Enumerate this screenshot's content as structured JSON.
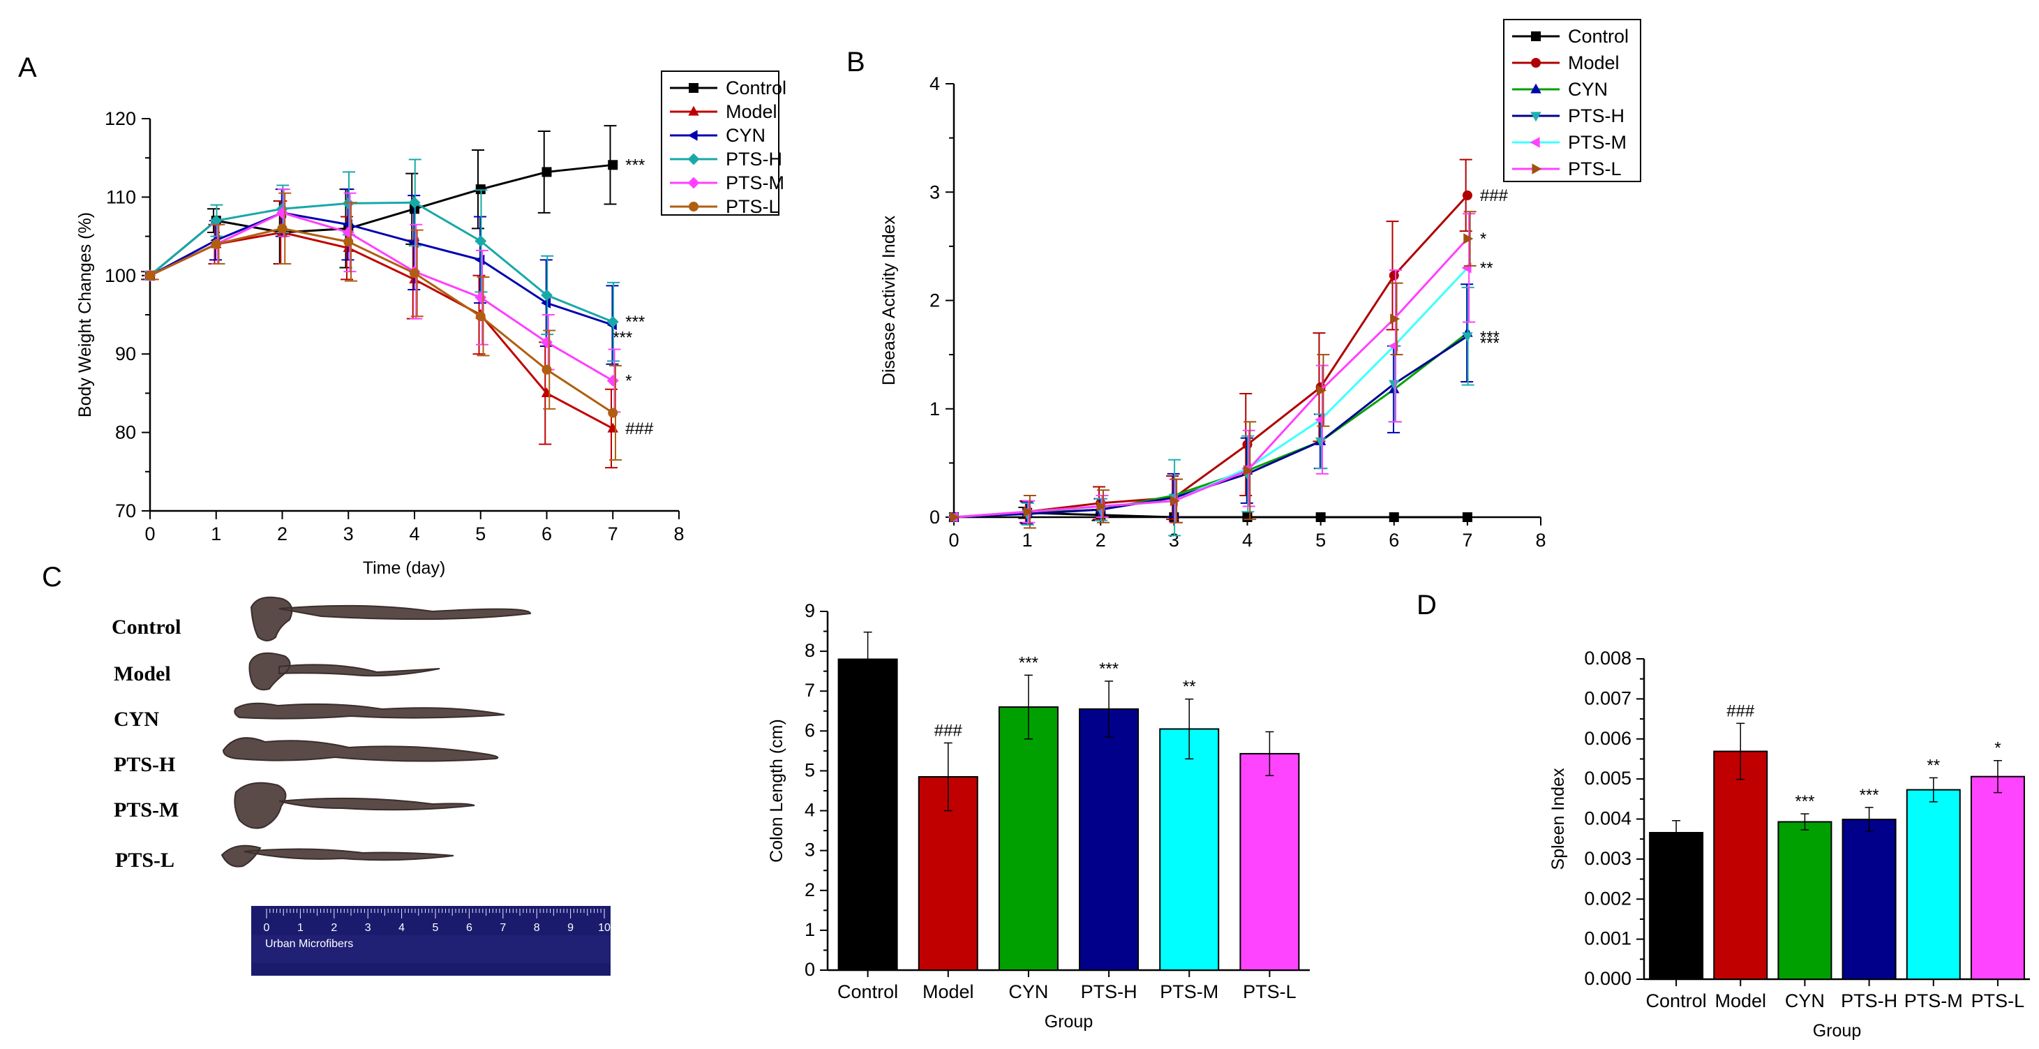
{
  "panels": {
    "A": "A",
    "B": "B",
    "C": "C",
    "D": "D"
  },
  "colon_photo": {
    "labels": [
      "Control",
      "Model",
      "CYN",
      "PTS-H",
      "PTS-M",
      "PTS-L"
    ],
    "ruler_numbers": [
      "0",
      "1",
      "2",
      "3",
      "4",
      "5",
      "6",
      "7",
      "8",
      "9",
      "10"
    ],
    "ruler_brand": "Urban Microfibers"
  },
  "colors": {
    "Control": "#000000",
    "Model": "#c00000",
    "CYN": "#00a000",
    "PTS-H": "#00008b",
    "PTS-M": "#00ffff",
    "PTS-L": "#ff44ff",
    "PTS-H_line": "#18a8a8",
    "PTS-M_line": "#ff40ff",
    "PTS-L_line": "#b05e10",
    "CYN_line": "#0000b0",
    "Model_line": "#c00000",
    "B_Model": "#b00000",
    "B_CYN": "#00a000",
    "B_PTS-H": "#000090",
    "B_PTS-M": "#40ffff",
    "B_PTS-L": "#a05010",
    "B_PTS-L_alt": "#ff40ff"
  },
  "chart_data": [
    {
      "id": "A",
      "type": "line",
      "title": "",
      "xlabel": "Time (day)",
      "ylabel": "Body Weight Changes (%)",
      "xlim": [
        0,
        8
      ],
      "ylim": [
        70,
        120
      ],
      "xticks": [
        "0",
        "1",
        "2",
        "3",
        "4",
        "5",
        "6",
        "7",
        "8"
      ],
      "yticks": [
        "70",
        "80",
        "90",
        "100",
        "110",
        "120"
      ],
      "legend": [
        "Control",
        "Model",
        "CYN",
        "PTS-H",
        "PTS-M",
        "PTS-L"
      ],
      "legend_position": "top-right",
      "x": [
        0,
        1,
        2,
        3,
        4,
        5,
        6,
        7
      ],
      "series": [
        {
          "name": "Control",
          "marker": "square",
          "values": [
            100,
            107,
            105.5,
            106,
            108.5,
            111,
            113.2,
            114.1
          ],
          "errors": [
            0.5,
            1.5,
            4,
            5,
            4.5,
            5,
            5.2,
            5
          ]
        },
        {
          "name": "Model",
          "marker": "triangle-up",
          "values": [
            100,
            104,
            105.5,
            103.5,
            99.5,
            95,
            85,
            80.5
          ],
          "errors": [
            0.5,
            2.5,
            4,
            4,
            5,
            5,
            6.5,
            5
          ]
        },
        {
          "name": "CYN",
          "marker": "triangle-left",
          "values": [
            100,
            104.5,
            108,
            106.5,
            104.2,
            102,
            96.5,
            93.7
          ],
          "errors": [
            0.5,
            2.5,
            3,
            4.5,
            6,
            5.5,
            5.5,
            5
          ]
        },
        {
          "name": "PTS-H",
          "marker": "diamond",
          "values": [
            100,
            107,
            108.5,
            109.2,
            109.3,
            104.4,
            97.5,
            94.1
          ],
          "errors": [
            0.5,
            2,
            3,
            4,
            5.5,
            6.5,
            5,
            5
          ]
        },
        {
          "name": "PTS-M",
          "marker": "diamond",
          "values": [
            100,
            104,
            108,
            105.5,
            100.5,
            97.2,
            91.5,
            86.6
          ],
          "errors": [
            0.5,
            2.5,
            3,
            5,
            6,
            6,
            3.5,
            4
          ]
        },
        {
          "name": "PTS-L",
          "marker": "circle",
          "values": [
            100,
            104,
            106,
            104.3,
            100.3,
            94.8,
            88,
            82.5
          ],
          "errors": [
            0.5,
            2.5,
            4.5,
            5,
            5.5,
            5,
            5,
            6
          ]
        }
      ],
      "annotations": [
        {
          "series": "Control",
          "text": "***"
        },
        {
          "series": "PTS-H",
          "text": "***"
        },
        {
          "series": "CYN",
          "text": "***"
        },
        {
          "series": "PTS-M",
          "text": "*"
        },
        {
          "series": "Model",
          "text": "###"
        }
      ]
    },
    {
      "id": "B",
      "type": "line",
      "title": "",
      "xlabel": "",
      "ylabel": "Disease Activity Index",
      "xlim": [
        0,
        8
      ],
      "ylim": [
        0,
        4
      ],
      "xticks": [
        "0",
        "1",
        "2",
        "3",
        "4",
        "5",
        "6",
        "7",
        "8"
      ],
      "yticks": [
        "0",
        "1",
        "2",
        "3",
        "4"
      ],
      "legend": [
        "Control",
        "Model",
        "CYN",
        "PTS-H",
        "PTS-M",
        "PTS-L"
      ],
      "legend_position": "top-right",
      "x": [
        0,
        1,
        2,
        3,
        4,
        5,
        6,
        7
      ],
      "series": [
        {
          "name": "Control",
          "marker": "square",
          "values": [
            0,
            0.04,
            0.02,
            0,
            0,
            0,
            0,
            0
          ],
          "errors": [
            0,
            0.05,
            0.05,
            0,
            0,
            0,
            0,
            0
          ]
        },
        {
          "name": "Model",
          "marker": "circle",
          "values": [
            0,
            0.05,
            0.13,
            0.18,
            0.67,
            1.2,
            2.23,
            2.97
          ],
          "errors": [
            0,
            0.1,
            0.15,
            0.2,
            0.47,
            0.5,
            0.5,
            0.33
          ]
        },
        {
          "name": "CYN",
          "marker": "triangle-up",
          "values": [
            0,
            0.04,
            0.07,
            0.2,
            0.43,
            0.7,
            1.18,
            1.7
          ],
          "errors": [
            0,
            0.1,
            0.1,
            0.2,
            0.3,
            0.25,
            0.4,
            0.45
          ]
        },
        {
          "name": "PTS-H",
          "marker": "triangle-down",
          "values": [
            0,
            0.03,
            0.07,
            0.18,
            0.4,
            0.7,
            1.23,
            1.67
          ],
          "errors": [
            0,
            0.1,
            0.1,
            0.35,
            0.35,
            0.25,
            0.35,
            0.45
          ]
        },
        {
          "name": "PTS-M",
          "marker": "triangle-left",
          "values": [
            0,
            0.05,
            0.1,
            0.15,
            0.45,
            0.9,
            1.58,
            2.3
          ],
          "errors": [
            0,
            0.1,
            0.1,
            0.2,
            0.35,
            0.5,
            0.7,
            0.5
          ]
        },
        {
          "name": "PTS-L",
          "marker": "triangle-right",
          "values": [
            0,
            0.05,
            0.1,
            0.15,
            0.43,
            1.17,
            1.83,
            2.57
          ],
          "errors": [
            0,
            0.15,
            0.15,
            0.2,
            0.45,
            0.33,
            0.33,
            0.25
          ]
        }
      ],
      "annotations": [
        {
          "series": "Model",
          "text": "###"
        },
        {
          "series": "PTS-L",
          "text": "*"
        },
        {
          "series": "PTS-M",
          "text": "**"
        },
        {
          "series": "CYN",
          "text": "***"
        },
        {
          "series": "PTS-H",
          "text": "***"
        }
      ]
    },
    {
      "id": "C",
      "type": "bar",
      "title": "",
      "xlabel": "Group",
      "ylabel": "Colon Length (cm)",
      "ylim": [
        0,
        9
      ],
      "yticks": [
        "0",
        "1",
        "2",
        "3",
        "4",
        "5",
        "6",
        "7",
        "8",
        "9"
      ],
      "categories": [
        "Control",
        "Model",
        "CYN",
        "PTS-H",
        "PTS-M",
        "PTS-L"
      ],
      "values": [
        7.8,
        4.85,
        6.6,
        6.55,
        6.05,
        5.43
      ],
      "errors": [
        0.68,
        0.85,
        0.8,
        0.7,
        0.75,
        0.55
      ],
      "annotations": [
        "",
        "###",
        "***",
        "***",
        "**",
        ""
      ]
    },
    {
      "id": "D",
      "type": "bar",
      "title": "",
      "xlabel": "Group",
      "ylabel": "Spleen Index",
      "ylim": [
        0,
        0.008
      ],
      "yticks": [
        "0.000",
        "0.001",
        "0.002",
        "0.003",
        "0.004",
        "0.005",
        "0.006",
        "0.007",
        "0.008"
      ],
      "categories": [
        "Control",
        "Model",
        "CYN",
        "PTS-H",
        "PTS-M",
        "PTS-L"
      ],
      "values": [
        0.00366,
        0.00569,
        0.00393,
        0.00399,
        0.00473,
        0.00506
      ],
      "errors": [
        0.0003,
        0.0007,
        0.0002,
        0.0003,
        0.0003,
        0.0004
      ],
      "annotations": [
        "",
        "###",
        "***",
        "***",
        "**",
        "*"
      ]
    }
  ]
}
